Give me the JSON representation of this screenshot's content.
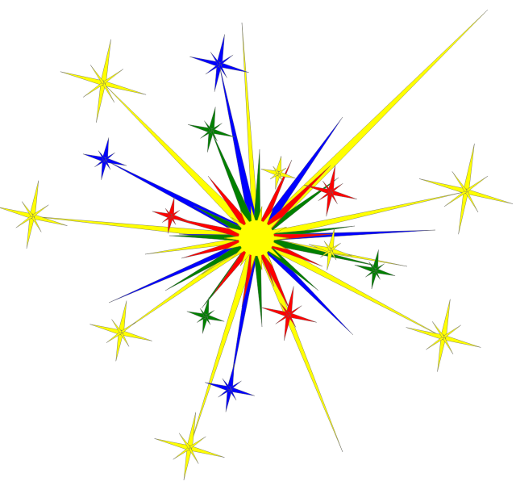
{
  "image": {
    "subject": "",
    "background": "#ffffff"
  },
  "colors": {
    "yellow": "#ffff00",
    "blue": "#0000ff",
    "green": "#008000",
    "red": "#ff0000",
    "outline": "#666666"
  },
  "sparkles": {
    "yellow_count": 8,
    "blue_count": 3,
    "green_count": 3,
    "red_count": 3
  }
}
